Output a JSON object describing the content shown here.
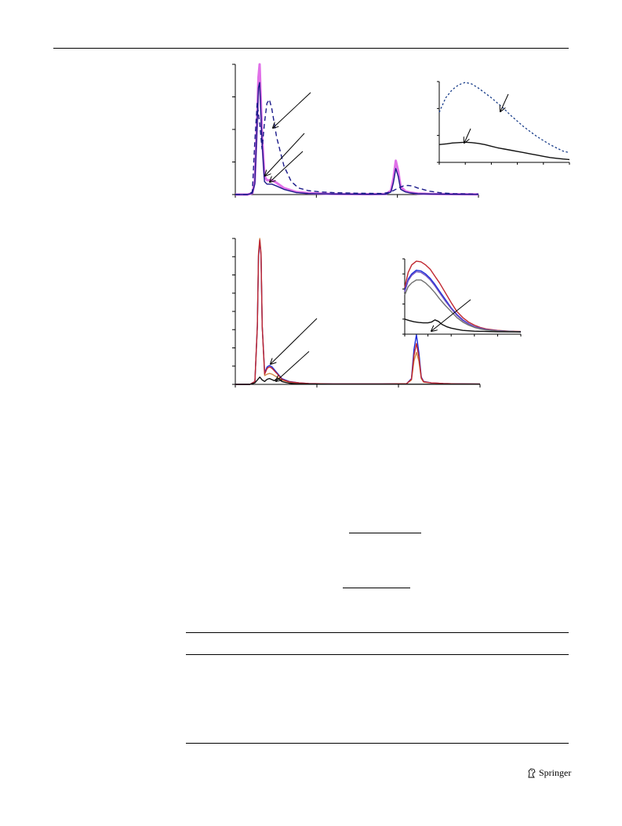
{
  "publisher": {
    "name": "Springer",
    "logo_icon": "springer-horse-icon"
  },
  "colors": {
    "magenta": "#e070e8",
    "navy": "#1a1a8a",
    "dark_blue_dash": "#1a3e8a",
    "black": "#111111",
    "blue": "#1c2bd9",
    "red": "#c0262f",
    "purple": "#7050c0",
    "gray": "#707070",
    "orange": "#d08a4a"
  },
  "chart_data": [
    {
      "type": "line",
      "xlim": [
        0,
        100
      ],
      "ylim": [
        0,
        100
      ],
      "series": [
        {
          "color": "#e070e8",
          "style": "solid-thick",
          "x": [
            0,
            5,
            7,
            8,
            9,
            9.5,
            10,
            11,
            12,
            13,
            15,
            17,
            20,
            25,
            30,
            40,
            55,
            62,
            64,
            65,
            66,
            67,
            68,
            70,
            72,
            75,
            80,
            90,
            100
          ],
          "y": [
            0,
            0,
            1,
            10,
            60,
            90,
            100,
            45,
            14,
            11,
            11,
            9,
            5,
            2,
            1,
            0.5,
            0.3,
            0.5,
            3,
            12,
            26,
            18,
            6,
            2.5,
            1.5,
            0.8,
            0.5,
            0.3,
            0.2
          ]
        },
        {
          "color": "#1a1a8a",
          "style": "solid",
          "x": [
            0,
            5,
            7,
            8,
            9,
            9.5,
            10,
            11,
            12,
            13,
            15,
            17,
            20,
            25,
            30,
            40,
            55,
            62,
            64,
            65,
            66,
            67,
            68,
            70,
            72,
            75,
            80,
            90,
            100
          ],
          "y": [
            0,
            0,
            1,
            8,
            55,
            82,
            86,
            40,
            10,
            8,
            8,
            6.5,
            4,
            1.5,
            0.8,
            0.4,
            0.2,
            0.3,
            2,
            9,
            20,
            14,
            4,
            2,
            1.2,
            0.6,
            0.4,
            0.2,
            0.1
          ]
        },
        {
          "color": "#1a1a8a",
          "style": "dash",
          "x": [
            0,
            5,
            7,
            8,
            9,
            10,
            11,
            12,
            13,
            14,
            15,
            17,
            20,
            23,
            26,
            30,
            35,
            40,
            50,
            60,
            63,
            65,
            67,
            69,
            71,
            73,
            75,
            80,
            85,
            90,
            100
          ],
          "y": [
            0,
            0,
            2,
            40,
            70,
            55,
            35,
            55,
            70,
            73,
            66,
            44,
            22,
            10,
            5,
            3,
            2,
            1.5,
            1,
            0.8,
            1.5,
            3,
            5,
            6.5,
            7,
            6.5,
            5,
            2.5,
            1.2,
            0.6,
            0.3
          ]
        }
      ],
      "inset": {
        "type": "line",
        "xlim": [
          0,
          100
        ],
        "ylim": [
          0,
          100
        ],
        "series": [
          {
            "color": "#1a3e8a",
            "style": "dot",
            "x": [
              0,
              5,
              10,
              15,
              20,
              25,
              30,
              35,
              40,
              45,
              50,
              55,
              60,
              65,
              70,
              75,
              80,
              85,
              90,
              95,
              100
            ],
            "y": [
              62,
              80,
              90,
              96,
              99,
              97,
              92,
              86,
              80,
              73,
              66,
              58,
              51,
              44,
              38,
              32,
              27,
              22,
              18,
              14,
              12
            ]
          },
          {
            "color": "#111111",
            "style": "solid",
            "x": [
              0,
              3,
              6,
              10,
              15,
              20,
              25,
              30,
              35,
              40,
              45,
              50,
              55,
              60,
              65,
              70,
              75,
              80,
              85,
              90,
              95,
              100
            ],
            "y": [
              22,
              22.5,
              23,
              24,
              24.5,
              25,
              24.5,
              23.5,
              22,
              20,
              18,
              16.5,
              15,
              13.5,
              12,
              10.5,
              9,
              7.5,
              6,
              5,
              4.2,
              3.5
            ]
          }
        ]
      }
    },
    {
      "type": "line",
      "xlim": [
        0,
        100
      ],
      "ylim": [
        0,
        100
      ],
      "series": [
        {
          "color": "#d08a4a",
          "style": "solid",
          "x": [
            0,
            6,
            8,
            9,
            9.5,
            10,
            10.5,
            11,
            12,
            13,
            14,
            15,
            17,
            19,
            22,
            26,
            30,
            40,
            60,
            70,
            72,
            73,
            74,
            75,
            76,
            77,
            80,
            85,
            90,
            100
          ],
          "y": [
            0,
            0,
            2,
            40,
            90,
            100,
            90,
            40,
            6,
            7,
            7.5,
            7,
            5,
            3,
            1.5,
            0.8,
            0.5,
            0.3,
            0.3,
            0.5,
            3,
            16,
            22,
            16,
            4,
            1.5,
            1,
            0.6,
            0.4,
            0.2
          ]
        },
        {
          "color": "#1c2bd9",
          "style": "solid",
          "x": [
            0,
            6,
            8,
            9,
            9.5,
            10,
            10.5,
            11,
            12,
            13,
            14,
            15,
            17,
            19,
            22,
            26,
            30,
            40,
            60,
            70,
            72,
            73,
            74,
            75,
            76,
            77,
            80,
            85,
            90,
            100
          ],
          "y": [
            0,
            0,
            2,
            40,
            88,
            98,
            88,
            40,
            8,
            12,
            13,
            12,
            8,
            4,
            2,
            1,
            0.6,
            0.3,
            0.3,
            0.5,
            4,
            24,
            34,
            22,
            5,
            2,
            1,
            0.6,
            0.4,
            0.2
          ]
        },
        {
          "color": "#c0262f",
          "style": "solid",
          "x": [
            0,
            6,
            8,
            9,
            9.5,
            10,
            10.5,
            11,
            12,
            13,
            14,
            15,
            17,
            19,
            22,
            26,
            30,
            40,
            60,
            70,
            72,
            73,
            74,
            75,
            76,
            77,
            80,
            85,
            90,
            100
          ],
          "y": [
            0,
            0,
            2,
            40,
            89,
            99,
            89,
            40,
            7,
            11,
            12,
            11,
            7.5,
            3.5,
            1.8,
            1,
            0.6,
            0.3,
            0.3,
            0.5,
            3.5,
            20,
            28,
            19,
            4.5,
            1.8,
            1,
            0.6,
            0.4,
            0.2
          ]
        },
        {
          "color": "#111111",
          "style": "solid",
          "x": [
            0,
            6,
            8,
            9,
            10,
            11,
            12,
            13,
            14,
            15,
            16,
            17,
            18,
            19,
            20,
            22,
            25,
            30,
            40,
            100
          ],
          "y": [
            0,
            0,
            1,
            3,
            5,
            3,
            2,
            3.5,
            4,
            3.2,
            2.5,
            4,
            3.5,
            2,
            1.5,
            0.8,
            0.4,
            0.2,
            0.1,
            0.1
          ]
        }
      ],
      "inset": {
        "type": "line",
        "xlim": [
          0,
          100
        ],
        "ylim": [
          0,
          100
        ],
        "series": [
          {
            "color": "#c0262f",
            "style": "solid",
            "x": [
              0,
              3,
              6,
              10,
              14,
              18,
              22,
              26,
              30,
              35,
              40,
              45,
              50,
              55,
              60,
              65,
              70,
              80,
              90,
              100
            ],
            "y": [
              62,
              82,
              92,
              97,
              96,
              92,
              86,
              77,
              68,
              55,
              42,
              30,
              22,
              16,
              12,
              9,
              7,
              5,
              4,
              3.5
            ]
          },
          {
            "color": "#1c2bd9",
            "style": "solid",
            "x": [
              0,
              3,
              6,
              10,
              14,
              18,
              22,
              26,
              30,
              35,
              40,
              45,
              50,
              55,
              60,
              65,
              70,
              80,
              90,
              100
            ],
            "y": [
              58,
              73,
              80,
              85,
              84,
              80,
              74,
              66,
              57,
              46,
              35,
              26,
              19,
              14,
              10,
              8,
              6,
              4.5,
              3.8,
              3.2
            ]
          },
          {
            "color": "#7050c0",
            "style": "solid",
            "x": [
              0,
              3,
              6,
              10,
              14,
              18,
              22,
              26,
              30,
              35,
              40,
              45,
              50,
              55,
              60,
              65,
              70,
              80,
              90,
              100
            ],
            "y": [
              56,
              71,
              78,
              83,
              82,
              78,
              72,
              64,
              55,
              44,
              34,
              25,
              18,
              13.5,
              10,
              8,
              6,
              4.5,
              3.8,
              3.2
            ]
          },
          {
            "color": "#707070",
            "style": "solid",
            "x": [
              0,
              3,
              6,
              10,
              14,
              18,
              22,
              26,
              30,
              35,
              40,
              45,
              50,
              55,
              60,
              65,
              70,
              80,
              90,
              100
            ],
            "y": [
              52,
              63,
              68,
              72,
              72,
              68,
              62,
              55,
              47,
              38,
              30,
              22,
              16,
              12,
              9,
              7,
              5.5,
              4.2,
              3.6,
              3.1
            ]
          },
          {
            "color": "#111111",
            "style": "solid",
            "x": [
              0,
              4,
              8,
              12,
              16,
              20,
              23,
              26,
              29,
              32,
              36,
              40,
              45,
              50,
              60,
              70,
              80,
              90,
              100
            ],
            "y": [
              20,
              18,
              16.5,
              15.5,
              15,
              15,
              16,
              19,
              17,
              13,
              10,
              8,
              6.5,
              5,
              4,
              3.5,
              3.2,
              3,
              2.9
            ]
          }
        ]
      }
    }
  ]
}
